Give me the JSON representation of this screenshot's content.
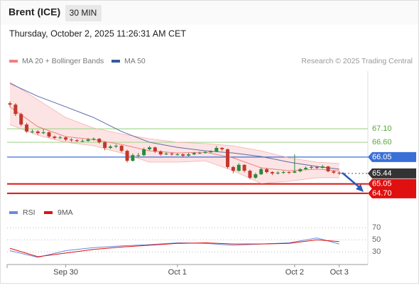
{
  "header": {
    "title": "Brent (ICE)",
    "interval": "30 MIN",
    "timestamp": "Thursday, October 2, 2025 11:26:31 AM CET"
  },
  "chart_data": {
    "type": "candlestick",
    "legend": [
      {
        "name": "MA 20 + Bollinger Bands",
        "color": "#f08080"
      },
      {
        "name": "MA 50",
        "color": "#3a5a9a"
      }
    ],
    "credit": "Research © 2025 Trading Central",
    "categories": [
      null,
      null,
      null,
      null,
      null,
      null,
      null,
      null,
      null,
      null,
      "Sep 30",
      null,
      null,
      null,
      null,
      null,
      null,
      null,
      null,
      null,
      null,
      null,
      null,
      null,
      null,
      null,
      null,
      null,
      null,
      null,
      "Oct 1",
      null,
      null,
      null,
      null,
      null,
      null,
      null,
      null,
      null,
      null,
      null,
      null,
      null,
      null,
      null,
      null,
      null,
      null,
      null,
      null,
      "Oct 2",
      null,
      null,
      null,
      null,
      null,
      null,
      null,
      "Oct 3"
    ],
    "ylim": [
      64.3,
      69.3
    ],
    "up_color": "#2a8a3a",
    "down_color": "#c0392b",
    "candles": [
      [
        68.05,
        68.12,
        67.92,
        68.0
      ],
      [
        68.0,
        68.05,
        67.58,
        67.65
      ],
      [
        67.65,
        67.7,
        67.2,
        67.26
      ],
      [
        67.26,
        67.32,
        66.95,
        67.0
      ],
      [
        67.0,
        67.08,
        66.93,
        67.0
      ],
      [
        67.0,
        67.05,
        66.88,
        66.94
      ],
      [
        66.94,
        67.1,
        66.9,
        66.97
      ],
      [
        66.97,
        67.0,
        66.76,
        66.81
      ],
      [
        66.81,
        66.85,
        66.7,
        66.76
      ],
      [
        66.76,
        66.84,
        66.72,
        66.78
      ],
      [
        66.78,
        66.82,
        66.64,
        66.7
      ],
      [
        66.7,
        66.75,
        66.62,
        66.68
      ],
      [
        66.68,
        66.72,
        66.6,
        66.65
      ],
      [
        66.65,
        66.72,
        66.6,
        66.65
      ],
      [
        66.65,
        66.76,
        66.62,
        66.7
      ],
      [
        66.7,
        66.78,
        66.66,
        66.73
      ],
      [
        66.73,
        66.76,
        66.55,
        66.6
      ],
      [
        66.6,
        66.63,
        66.3,
        66.39
      ],
      [
        66.39,
        66.5,
        66.35,
        66.44
      ],
      [
        66.44,
        66.52,
        66.38,
        66.47
      ],
      [
        66.47,
        66.5,
        66.22,
        66.28
      ],
      [
        66.28,
        66.32,
        65.85,
        65.91
      ],
      [
        65.91,
        66.18,
        65.88,
        66.12
      ],
      [
        66.12,
        66.2,
        66.05,
        66.12
      ],
      [
        66.12,
        66.4,
        66.08,
        66.34
      ],
      [
        66.34,
        66.46,
        66.3,
        66.41
      ],
      [
        66.41,
        66.44,
        66.2,
        66.26
      ],
      [
        66.26,
        66.3,
        66.1,
        66.15
      ],
      [
        66.15,
        66.24,
        66.12,
        66.18
      ],
      [
        66.18,
        66.22,
        66.1,
        66.15
      ],
      [
        66.15,
        66.2,
        66.1,
        66.15
      ],
      [
        66.15,
        66.18,
        66.05,
        66.1
      ],
      [
        66.1,
        66.2,
        66.08,
        66.15
      ],
      [
        66.15,
        66.24,
        66.12,
        66.2
      ],
      [
        66.2,
        66.25,
        66.16,
        66.2
      ],
      [
        66.2,
        66.28,
        66.18,
        66.23
      ],
      [
        66.23,
        66.3,
        66.2,
        66.26
      ],
      [
        66.26,
        66.46,
        66.24,
        66.39
      ],
      [
        66.39,
        66.42,
        66.28,
        66.34
      ],
      [
        66.34,
        66.36,
        65.62,
        65.68
      ],
      [
        65.68,
        65.72,
        65.45,
        65.54
      ],
      [
        65.54,
        65.82,
        65.5,
        65.76
      ],
      [
        65.76,
        65.78,
        65.48,
        65.54
      ],
      [
        65.54,
        65.58,
        65.22,
        65.28
      ],
      [
        65.28,
        65.46,
        65.24,
        65.41
      ],
      [
        65.41,
        65.66,
        65.38,
        65.6
      ],
      [
        65.6,
        65.64,
        65.44,
        65.49
      ],
      [
        65.49,
        65.52,
        65.38,
        65.44
      ],
      [
        65.44,
        65.52,
        65.4,
        65.47
      ],
      [
        65.47,
        65.54,
        65.42,
        65.49
      ],
      [
        65.49,
        65.52,
        65.42,
        65.47
      ],
      [
        65.47,
        66.15,
        65.45,
        65.52
      ],
      [
        65.52,
        65.64,
        65.48,
        65.6
      ],
      [
        65.6,
        65.7,
        65.56,
        65.65
      ],
      [
        65.65,
        65.74,
        65.6,
        65.68
      ],
      [
        65.68,
        65.72,
        65.6,
        65.65
      ],
      [
        65.65,
        65.76,
        65.62,
        65.7
      ],
      [
        65.7,
        65.72,
        65.48,
        65.52
      ],
      [
        65.52,
        65.56,
        65.42,
        65.47
      ],
      [
        65.47,
        65.52,
        65.38,
        65.44
      ]
    ],
    "lines": [
      {
        "name": "upper",
        "color": "#f4b0b0",
        "x": [
          0,
          5,
          10,
          15,
          20,
          25,
          30,
          35,
          40,
          45,
          50,
          55,
          59
        ],
        "values": [
          68.84,
          68.18,
          67.52,
          67.13,
          66.91,
          66.73,
          66.6,
          66.55,
          66.47,
          66.28,
          66.02,
          65.86,
          65.81
        ]
      },
      {
        "name": "lower",
        "color": "#f4b0b0",
        "x": [
          0,
          5,
          10,
          15,
          20,
          25,
          30,
          35,
          40,
          45,
          50,
          55,
          59
        ],
        "values": [
          67.26,
          66.86,
          66.6,
          66.47,
          66.2,
          65.86,
          65.86,
          65.91,
          65.54,
          65.07,
          65.15,
          65.28,
          65.28
        ]
      },
      {
        "name": "MA 20",
        "color": "#f08080",
        "x": [
          0,
          5,
          10,
          15,
          20,
          25,
          30,
          35,
          40,
          45,
          50,
          55,
          59
        ],
        "values": [
          67.92,
          67.18,
          66.81,
          66.7,
          66.52,
          66.28,
          66.2,
          66.23,
          66.02,
          65.65,
          65.54,
          65.6,
          65.54
        ]
      },
      {
        "name": "MA 50",
        "color": "#5a6aa8",
        "x": [
          0,
          5,
          10,
          15,
          20,
          25,
          30,
          35,
          40,
          45,
          50,
          55,
          59
        ],
        "values": [
          68.79,
          68.31,
          67.92,
          67.52,
          67.0,
          66.6,
          66.41,
          66.28,
          66.2,
          66.07,
          65.86,
          65.7,
          65.6
        ]
      }
    ],
    "band_fill": "#fde4e4",
    "levels": [
      {
        "value": {
          "value": 67.1,
          "label": "67.10"
        },
        "kind": "resistance",
        "color": "#a8d890"
      },
      {
        "value": {
          "value": 66.6,
          "label": "66.60"
        },
        "kind": "resistance",
        "color": "#a8d890"
      },
      {
        "value": 66.05,
        "kind": "pivot",
        "color": "#3a6fd8"
      },
      {
        "value": 65.44,
        "kind": "last",
        "color": "#333333"
      },
      {
        "value": 65.05,
        "kind": "support",
        "color": "#e01010"
      },
      {
        "value": {
          "value": 64.7,
          "label": "64.70"
        },
        "kind": "support",
        "color": "#e01010"
      }
    ],
    "rsi": {
      "ylim": [
        12,
        82
      ],
      "yticks": [
        70,
        50,
        30
      ],
      "series": [
        {
          "name": "RSI",
          "color": "#6a8ae0",
          "x": [
            0,
            5,
            10,
            15,
            20,
            25,
            30,
            35,
            40,
            45,
            50,
            55,
            59
          ],
          "values": [
            32,
            21,
            32,
            37,
            40,
            42,
            45,
            44,
            41,
            43,
            45,
            53,
            43
          ]
        },
        {
          "name": "9MA",
          "color": "#e01010",
          "x": [
            0,
            5,
            10,
            15,
            20,
            25,
            30,
            35,
            40,
            45,
            50,
            55,
            59
          ],
          "values": [
            36,
            22,
            28,
            34,
            38,
            41,
            44,
            45,
            43,
            43,
            44,
            50,
            47
          ]
        }
      ]
    }
  }
}
